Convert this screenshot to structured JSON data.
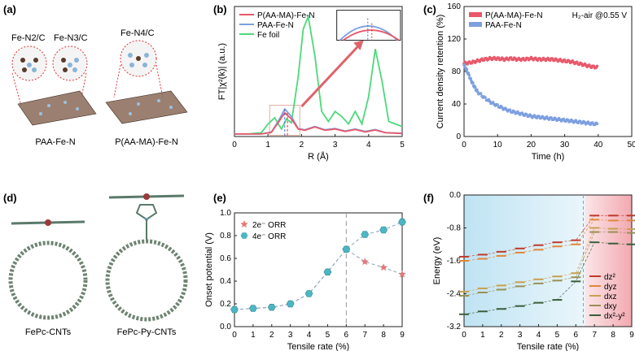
{
  "panel_labels": {
    "a": "(a)",
    "b": "(b)",
    "c": "(c)",
    "d": "(d)",
    "e": "(e)",
    "f": "(f)"
  },
  "panel_a": {
    "insets": [
      "Fe-N2/C",
      "Fe-N3/C",
      "Fe-N4/C"
    ],
    "captions": [
      "PAA-Fe-N",
      "P(AA-MA)-Fe-N"
    ]
  },
  "panel_d": {
    "captions": [
      "FePc-CNTs",
      "FePc-Py-CNTs"
    ]
  },
  "chart_data": [
    {
      "panel": "b",
      "type": "line",
      "xlabel": "R (Å)",
      "ylabel": "FT|χ²(k)| (a.u.)",
      "xlim": [
        0,
        5
      ],
      "xticks": [
        "0",
        "1",
        "2",
        "3",
        "4",
        "5"
      ],
      "legend": "top-left",
      "inset": "zoomed first-shell peak: blue peak higher than red, dashed markers at peak positions",
      "series": [
        {
          "name": "P(AA-MA)-Fe-N",
          "color": "#e8586a",
          "x": [
            0,
            0.4,
            0.8,
            1.1,
            1.3,
            1.5,
            1.7,
            1.9,
            2.1,
            2.4,
            2.7,
            3.0,
            3.3,
            3.6,
            3.9,
            4.2,
            4.5,
            5.0
          ],
          "y": [
            0.1,
            0.1,
            0.1,
            0.16,
            0.55,
            0.95,
            0.7,
            0.3,
            0.25,
            0.38,
            0.25,
            0.3,
            0.2,
            0.28,
            0.18,
            0.26,
            0.15,
            0.12
          ]
        },
        {
          "name": "PAA-Fe-N",
          "color": "#7d9fe0",
          "x": [
            0,
            0.4,
            0.8,
            1.1,
            1.3,
            1.5,
            1.7,
            1.9,
            2.1,
            2.4,
            2.7,
            3.0,
            3.3,
            3.6,
            3.9,
            4.2,
            4.5,
            5.0
          ],
          "y": [
            0.1,
            0.1,
            0.1,
            0.18,
            0.6,
            1.1,
            0.8,
            0.32,
            0.27,
            0.4,
            0.27,
            0.32,
            0.22,
            0.3,
            0.2,
            0.28,
            0.16,
            0.13
          ]
        },
        {
          "name": "Fe foil",
          "color": "#4cd97a",
          "x": [
            0,
            0.4,
            0.8,
            1.0,
            1.2,
            1.4,
            1.55,
            1.7,
            1.9,
            2.05,
            2.2,
            2.4,
            2.6,
            2.8,
            3.0,
            3.2,
            3.4,
            3.6,
            3.8,
            4.0,
            4.2,
            4.4,
            4.6,
            4.8,
            5.0
          ],
          "y": [
            0.1,
            0.1,
            0.15,
            0.5,
            0.75,
            0.3,
            0.7,
            0.55,
            2.4,
            4.3,
            4.8,
            3.2,
            1.0,
            0.6,
            1.0,
            0.8,
            0.5,
            1.0,
            0.5,
            1.6,
            3.5,
            2.2,
            0.6,
            0.5,
            0.4
          ]
        }
      ]
    },
    {
      "panel": "c",
      "type": "scatter",
      "xlabel": "Time (h)",
      "ylabel": "Current density retention (%)",
      "xlim": [
        0,
        50
      ],
      "ylim": [
        0,
        160
      ],
      "xticks": [
        "0",
        "10",
        "20",
        "30",
        "40",
        "50"
      ],
      "yticks": [
        "0",
        "40",
        "80",
        "120",
        "160"
      ],
      "annotation": "H₂-air  @0.55 V",
      "legend": "top-left",
      "series": [
        {
          "name": "P(AA-MA)-Fe-N",
          "color": "#e8586a",
          "x": [
            0,
            2,
            4,
            6,
            8,
            10,
            12,
            14,
            16,
            18,
            20,
            22,
            24,
            26,
            28,
            30,
            32,
            34,
            36,
            38,
            40
          ],
          "y": [
            90,
            91,
            93,
            95,
            96,
            96,
            95,
            96,
            95,
            95,
            96,
            95,
            95,
            95,
            94,
            93,
            92,
            90,
            88,
            86,
            85
          ]
        },
        {
          "name": "PAA-Fe-N",
          "color": "#7d9fe0",
          "x": [
            0,
            1,
            2,
            3,
            4,
            6,
            8,
            10,
            12,
            14,
            16,
            18,
            20,
            22,
            24,
            26,
            28,
            30,
            32,
            34,
            36,
            38,
            40
          ],
          "y": [
            88,
            80,
            70,
            62,
            55,
            48,
            42,
            38,
            34,
            31,
            29,
            27,
            25,
            24,
            23,
            22,
            21,
            20,
            19,
            18,
            17,
            16,
            15
          ]
        }
      ]
    },
    {
      "panel": "e",
      "type": "line",
      "xlabel": "Tensile rate (%)",
      "ylabel": "Onset potential (V)",
      "xlim": [
        0,
        9
      ],
      "ylim": [
        0.0,
        1.0
      ],
      "xticks": [
        "0",
        "1",
        "2",
        "3",
        "4",
        "5",
        "6",
        "7",
        "8",
        "9"
      ],
      "yticks": [
        "0.0",
        "0.2",
        "0.4",
        "0.6",
        "0.8",
        "1.0"
      ],
      "vline_x": 6,
      "legend": "top-left",
      "series": [
        {
          "name": "2e⁻ ORR",
          "color": "#e07a7a",
          "marker": "star",
          "x": [
            0,
            1,
            2,
            3,
            4,
            5,
            6,
            7,
            8,
            9
          ],
          "y": [
            0.15,
            0.16,
            0.17,
            0.2,
            0.29,
            0.48,
            0.68,
            0.57,
            0.52,
            0.46
          ]
        },
        {
          "name": "4e⁻ ORR",
          "color": "#4db6c4",
          "marker": "hexagon",
          "x": [
            0,
            1,
            2,
            3,
            4,
            5,
            6,
            7,
            8,
            9
          ],
          "y": [
            0.15,
            0.16,
            0.17,
            0.2,
            0.29,
            0.48,
            0.68,
            0.81,
            0.85,
            0.92
          ]
        }
      ]
    },
    {
      "panel": "f",
      "type": "line",
      "xlabel": "Tensile rate (%)",
      "ylabel": "Energy (eV)",
      "xlim": [
        0,
        9
      ],
      "ylim": [
        -3.2,
        0.0
      ],
      "xticks": [
        "0",
        "1",
        "2",
        "3",
        "4",
        "5",
        "6",
        "7",
        "8",
        "9"
      ],
      "yticks": [
        "0.0",
        "-0.8",
        "-1.6",
        "-2.4",
        "-3.2"
      ],
      "vline_x": 6.4,
      "legend": "bottom-right",
      "series": [
        {
          "name": "dz²",
          "color": "#c0392b",
          "x": [
            0,
            1,
            2,
            3,
            4,
            5,
            6,
            7,
            8,
            9
          ],
          "y": [
            -1.5,
            -1.45,
            -1.38,
            -1.3,
            -1.22,
            -1.15,
            -1.1,
            -0.5,
            -0.5,
            -0.5
          ]
        },
        {
          "name": "dyz",
          "color": "#e0863a",
          "x": [
            0,
            1,
            2,
            3,
            4,
            5,
            6,
            7,
            8,
            9
          ],
          "y": [
            -1.6,
            -1.55,
            -1.48,
            -1.4,
            -1.33,
            -1.25,
            -1.2,
            -0.6,
            -0.62,
            -0.62
          ]
        },
        {
          "name": "dxz",
          "color": "#c8a050",
          "x": [
            0,
            1,
            2,
            3,
            4,
            5,
            6,
            7,
            8,
            9
          ],
          "y": [
            -2.35,
            -2.27,
            -2.2,
            -2.12,
            -2.05,
            -1.98,
            -1.9,
            -0.8,
            -0.82,
            -0.83
          ]
        },
        {
          "name": "dxy",
          "color": "#9a8f55",
          "x": [
            0,
            1,
            2,
            3,
            4,
            5,
            6,
            7,
            8,
            9
          ],
          "y": [
            -2.45,
            -2.37,
            -2.3,
            -2.22,
            -2.15,
            -2.08,
            -2.0,
            -0.9,
            -0.9,
            -0.92
          ]
        },
        {
          "name": "dx²-y²",
          "color": "#3b5e3b",
          "x": [
            0,
            1,
            2,
            3,
            4,
            5,
            6,
            7,
            8,
            9
          ],
          "y": [
            -2.9,
            -2.83,
            -2.77,
            -2.7,
            -2.62,
            -2.55,
            -2.1,
            -1.15,
            -1.18,
            -1.2
          ]
        }
      ]
    }
  ]
}
